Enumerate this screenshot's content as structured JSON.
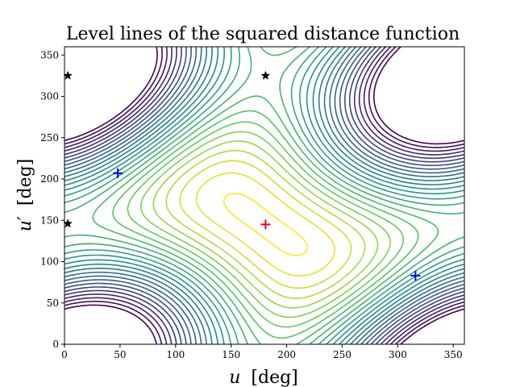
{
  "chart_data": {
    "type": "contour",
    "title": "Level lines of the squared distance function",
    "xlabel_var": "u",
    "xlabel_unit": "[deg]",
    "ylabel_var": "u′",
    "ylabel_unit": "[deg]",
    "xlim": [
      0,
      360
    ],
    "ylim": [
      0,
      360
    ],
    "xticks": [
      0,
      50,
      100,
      150,
      200,
      250,
      300,
      350
    ],
    "yticks": [
      0,
      50,
      100,
      150,
      200,
      250,
      300,
      350
    ],
    "xtick_labels": [
      "0",
      "50",
      "100",
      "150",
      "200",
      "250",
      "300",
      "350"
    ],
    "ytick_labels": [
      "0",
      "50",
      "100",
      "150",
      "200",
      "250",
      "300",
      "350"
    ],
    "colormap": "viridis",
    "minimum": {
      "marker": "plus",
      "color": "#e8001c",
      "x": 181,
      "y": 145
    },
    "local_extrema": [
      {
        "marker": "plus",
        "color": "#0000ff",
        "x": 48,
        "y": 207
      },
      {
        "marker": "plus",
        "color": "#0000ff",
        "x": 316,
        "y": 83
      }
    ],
    "saddles": [
      {
        "marker": "star",
        "color": "#000000",
        "x": 3,
        "y": 325
      },
      {
        "marker": "star",
        "color": "#000000",
        "x": 181,
        "y": 325
      },
      {
        "marker": "star",
        "color": "#000000",
        "x": 3,
        "y": 146
      }
    ]
  }
}
